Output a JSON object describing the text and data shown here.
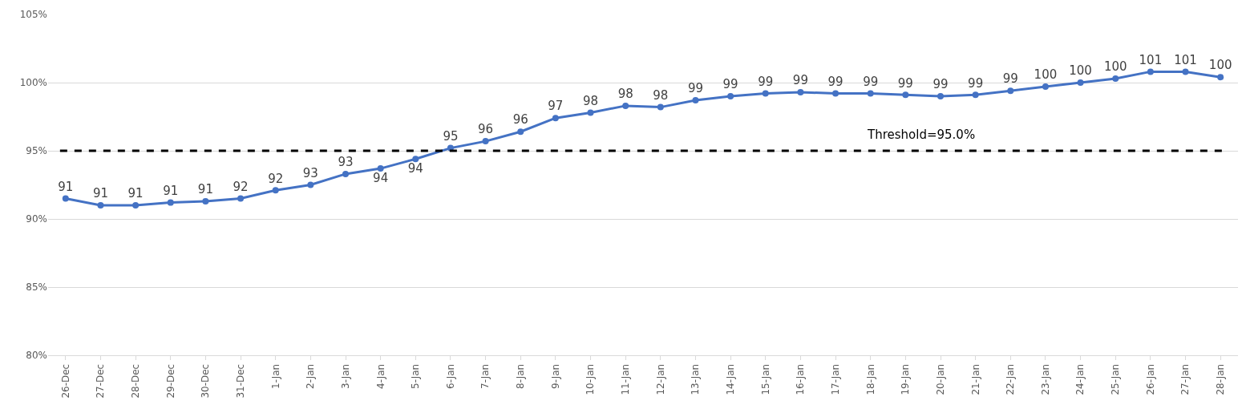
{
  "chart_data": {
    "type": "line",
    "categories": [
      "26-Dec",
      "27-Dec",
      "28-Dec",
      "29-Dec",
      "30-Dec",
      "31-Dec",
      "1-Jan",
      "2-Jan",
      "3-Jan",
      "4-Jan",
      "5-Jan",
      "6-Jan",
      "7-Jan",
      "8-Jan",
      "9-Jan",
      "10-Jan",
      "11-Jan",
      "12-Jan",
      "13-Jan",
      "14-Jan",
      "15-Jan",
      "16-Jan",
      "17-Jan",
      "18-Jan",
      "19-Jan",
      "20-Jan",
      "21-Jan",
      "22-Jan",
      "23-Jan",
      "24-Jan",
      "25-Jan",
      "26-Jan",
      "27-Jan",
      "28-Jan"
    ],
    "series": [
      {
        "color": "#4472c4",
        "values": [
          91.5,
          91.0,
          91.0,
          91.2,
          91.3,
          91.5,
          92.1,
          92.5,
          93.3,
          93.7,
          94.4,
          95.2,
          95.7,
          96.4,
          97.4,
          97.8,
          98.3,
          98.2,
          98.7,
          99.0,
          99.2,
          99.3,
          99.2,
          99.2,
          99.1,
          99.0,
          99.1,
          99.4,
          99.7,
          100.0,
          100.3,
          100.8,
          100.8,
          100.4
        ],
        "value_labels": [
          "91",
          "91",
          "91",
          "91",
          "91",
          "92",
          "92",
          "93",
          "93",
          "94",
          "94",
          "95",
          "96",
          "96",
          "97",
          "98",
          "98",
          "98",
          "99",
          "99",
          "99",
          "99",
          "99",
          "99",
          "99",
          "99",
          "99",
          "99",
          "100",
          "100",
          "100",
          "101",
          "101",
          "100"
        ]
      }
    ],
    "ylim": [
      80,
      105
    ],
    "yticks": [
      {
        "value": 80,
        "label": "80%"
      },
      {
        "value": 85,
        "label": "85%"
      },
      {
        "value": 90,
        "label": "90%"
      },
      {
        "value": 95,
        "label": "95%"
      },
      {
        "value": 100,
        "label": "100%"
      },
      {
        "value": 105,
        "label": "105%"
      }
    ],
    "ref_lines": [
      {
        "axis": "y",
        "value": 95,
        "label": "Threshold=95.0%",
        "color": "#000000",
        "line_style": "dashed"
      }
    ],
    "grid": "y",
    "marker": "circle",
    "line_style": "solid"
  }
}
